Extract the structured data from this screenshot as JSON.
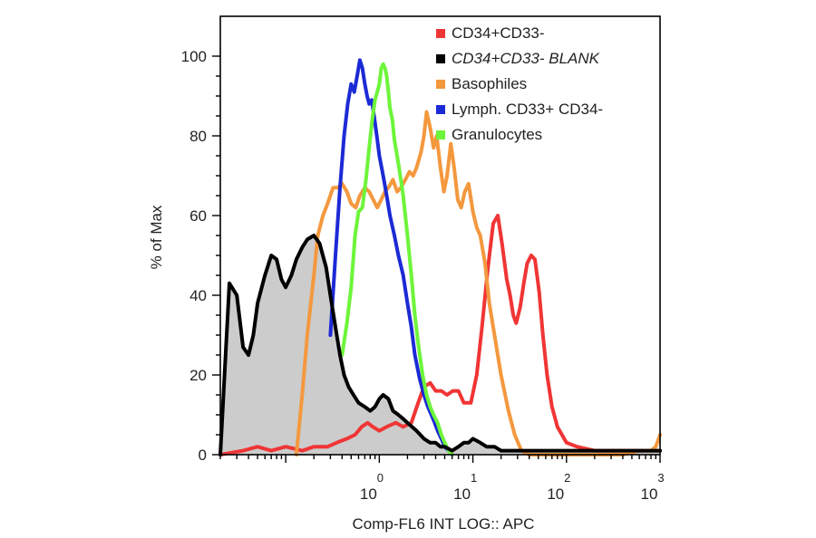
{
  "chart_data": {
    "type": "line",
    "title": "",
    "xlabel": "Comp-FL6 INT LOG:: APC",
    "ylabel": "% of Max",
    "x_scale": "log",
    "xlim": [
      0.02,
      1000
    ],
    "ylim": [
      0,
      110
    ],
    "x_ticks": [
      {
        "value": 1,
        "base": "10",
        "exp": "0"
      },
      {
        "value": 10,
        "base": "10",
        "exp": "1"
      },
      {
        "value": 100,
        "base": "10",
        "exp": "2"
      },
      {
        "value": 1000,
        "base": "10",
        "exp": "3"
      }
    ],
    "y_ticks": [
      0,
      20,
      40,
      60,
      80,
      100
    ],
    "grid": false,
    "legend_position": "top-right",
    "series": [
      {
        "name": "CD34+CD33-",
        "color": "#f03535",
        "italic": false,
        "filled": false,
        "x": [
          0.02,
          0.035,
          0.05,
          0.07,
          0.1,
          0.15,
          0.2,
          0.28,
          0.35,
          0.45,
          0.55,
          0.65,
          0.75,
          0.85,
          1.0,
          1.2,
          1.5,
          1.8,
          2.2,
          2.6,
          3.0,
          3.5,
          4.0,
          4.6,
          5.3,
          6.1,
          7.0,
          8.0,
          9.5,
          11,
          12.5,
          14.5,
          16.5,
          18.5,
          20.5,
          23,
          25,
          27,
          29,
          32,
          35,
          38,
          42,
          46,
          51,
          56,
          62,
          70,
          80,
          100,
          130,
          200,
          300,
          500,
          700,
          1000
        ],
        "y": [
          0,
          1,
          2,
          1,
          2,
          1,
          2,
          2,
          3,
          4,
          5,
          7,
          8,
          7,
          6,
          7,
          8,
          7,
          8,
          13,
          17,
          18,
          16,
          16,
          15,
          16,
          16,
          13,
          13,
          20,
          32,
          47,
          58,
          60,
          53,
          44,
          40,
          35,
          33,
          37,
          43,
          48,
          50,
          49,
          41,
          30,
          20,
          12,
          7,
          3,
          2,
          1,
          1,
          1,
          1,
          1
        ]
      },
      {
        "name": "CD34+CD33- BLANK",
        "color": "#000000",
        "italic": true,
        "filled": true,
        "fill_color": "#cccccc",
        "x": [
          0.02,
          0.025,
          0.03,
          0.035,
          0.04,
          0.045,
          0.05,
          0.06,
          0.07,
          0.08,
          0.09,
          0.1,
          0.115,
          0.13,
          0.15,
          0.17,
          0.2,
          0.23,
          0.27,
          0.3,
          0.34,
          0.38,
          0.42,
          0.47,
          0.53,
          0.6,
          0.7,
          0.8,
          0.9,
          1.0,
          1.1,
          1.25,
          1.4,
          1.6,
          1.8,
          2.0,
          2.5,
          3.0,
          3.5,
          4.0,
          4.5,
          5.0,
          6.0,
          7.0,
          8.0,
          9.0,
          10,
          12,
          14,
          17,
          20,
          30,
          50,
          100,
          200,
          400,
          700,
          1000
        ],
        "y": [
          0,
          43,
          40,
          27,
          25,
          30,
          38,
          45,
          50,
          49,
          44,
          42,
          45,
          49,
          52,
          54,
          55,
          53,
          47,
          40,
          32,
          25,
          20,
          17,
          15,
          13,
          12,
          11,
          12,
          14,
          15,
          14,
          11,
          10,
          9,
          8,
          6,
          4,
          3,
          3,
          2,
          2,
          1,
          2,
          3,
          3,
          4,
          3,
          2,
          2,
          1,
          1,
          1,
          1,
          1,
          1,
          1,
          1
        ]
      },
      {
        "name": "Basophiles",
        "color": "#f4983e",
        "italic": false,
        "filled": false,
        "x": [
          0.13,
          0.15,
          0.17,
          0.2,
          0.22,
          0.25,
          0.28,
          0.32,
          0.36,
          0.4,
          0.45,
          0.5,
          0.56,
          0.62,
          0.7,
          0.78,
          0.86,
          0.95,
          1.05,
          1.15,
          1.25,
          1.4,
          1.55,
          1.7,
          1.9,
          2.1,
          2.3,
          2.5,
          2.8,
          3.0,
          3.2,
          3.5,
          3.8,
          4.1,
          4.5,
          4.9,
          5.3,
          5.8,
          6.3,
          6.9,
          7.5,
          8.2,
          9.0,
          10,
          11,
          12,
          13.5,
          15,
          17,
          20,
          24,
          28,
          33,
          40,
          50,
          70,
          100,
          200,
          400,
          600,
          700,
          800,
          900,
          1000
        ],
        "y": [
          0,
          15,
          30,
          45,
          55,
          60,
          63,
          67,
          67,
          68,
          66,
          63,
          62,
          65,
          67,
          66,
          64,
          62,
          64,
          66,
          67,
          69,
          66,
          67,
          69,
          71,
          70,
          72,
          76,
          80,
          86,
          82,
          77,
          80,
          72,
          66,
          70,
          78,
          72,
          64,
          62,
          66,
          68,
          61,
          57,
          55,
          48,
          38,
          30,
          20,
          11,
          5,
          1,
          0,
          0,
          0,
          0,
          0,
          0,
          1,
          1,
          1,
          2,
          5
        ]
      },
      {
        "name": "Lymph. CD33+ CD34-",
        "color": "#1c2ad6",
        "italic": false,
        "filled": false,
        "x": [
          0.3,
          0.34,
          0.38,
          0.42,
          0.46,
          0.5,
          0.54,
          0.58,
          0.62,
          0.66,
          0.7,
          0.74,
          0.78,
          0.83,
          0.88,
          0.94,
          1.0,
          1.1,
          1.2,
          1.3,
          1.45,
          1.6,
          1.8,
          2.0,
          2.2,
          2.4,
          2.7,
          3.0,
          3.3,
          3.6,
          3.9,
          4.2,
          4.6,
          5.0,
          5.5,
          6.0
        ],
        "y": [
          30,
          50,
          67,
          80,
          88,
          93,
          91,
          95,
          99,
          97,
          93,
          90,
          88,
          89,
          85,
          80,
          75,
          70,
          65,
          60,
          55,
          50,
          45,
          38,
          32,
          25,
          19,
          15,
          12,
          10,
          8,
          6,
          4,
          2,
          1,
          0
        ]
      },
      {
        "name": "Granulocytes",
        "color": "#6df53a",
        "italic": false,
        "filled": false,
        "x": [
          0.4,
          0.45,
          0.5,
          0.55,
          0.6,
          0.66,
          0.72,
          0.78,
          0.84,
          0.9,
          0.95,
          1.0,
          1.05,
          1.1,
          1.15,
          1.2,
          1.25,
          1.3,
          1.38,
          1.45,
          1.55,
          1.65,
          1.8,
          2.0,
          2.2,
          2.4,
          2.6,
          2.9,
          3.2,
          3.5,
          3.8,
          4.2,
          4.6,
          5.0,
          5.5,
          6.0
        ],
        "y": [
          25,
          33,
          42,
          55,
          61,
          62,
          69,
          77,
          84,
          89,
          91,
          93,
          97,
          98,
          97,
          95,
          91,
          87,
          84,
          79,
          75,
          71,
          65,
          55,
          45,
          35,
          28,
          20,
          15,
          12,
          10,
          8,
          5,
          3,
          1,
          0
        ]
      }
    ]
  }
}
